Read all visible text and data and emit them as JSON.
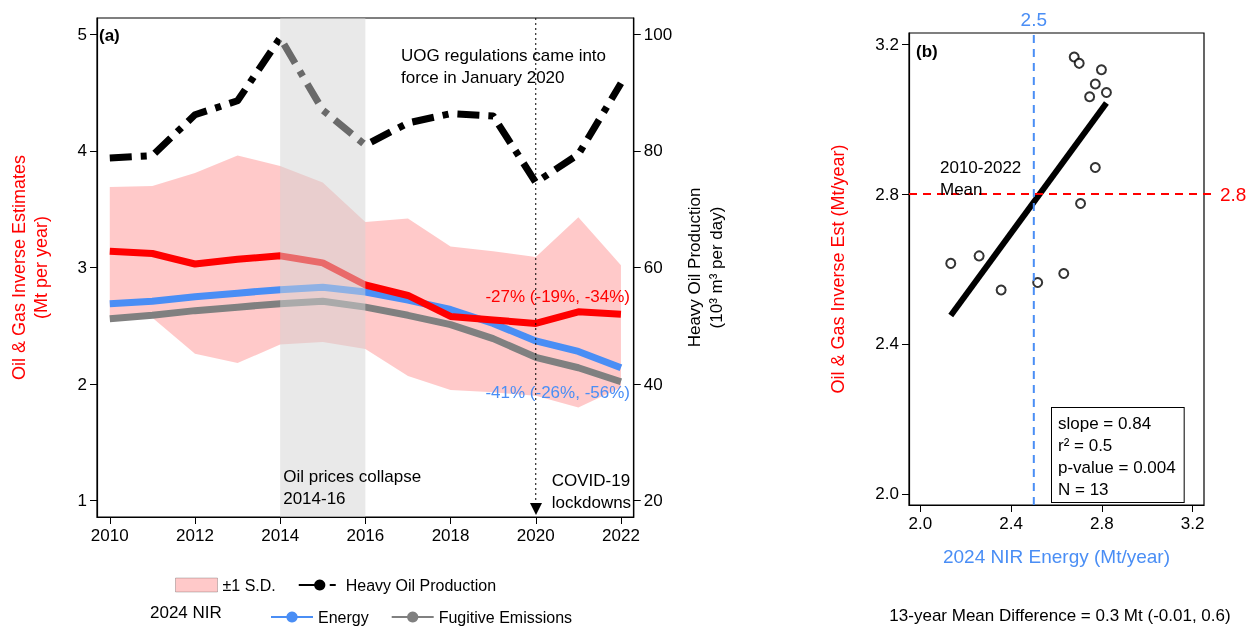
{
  "chart_data": [
    {
      "type": "line",
      "x": [
        2010,
        2011,
        2012,
        2013,
        2014,
        2015,
        2016,
        2017,
        2018,
        2019,
        2020,
        2021,
        2022
      ],
      "ylabel": "Oil & Gas Inverse Estimates\n(Mt per year)",
      "y2label": "Heavy Oil Production\n(10³ m³ per day)",
      "legend_title": "2024 NIR",
      "xlim": [
        2009.7,
        2022.3
      ],
      "xticks": [
        2010,
        2012,
        2014,
        2016,
        2018,
        2020,
        2022
      ],
      "ylim": [
        0.86,
        5.14
      ],
      "yticks": [
        1,
        2,
        3,
        4,
        5
      ],
      "y2lim": [
        17.2,
        102.8
      ],
      "y2ticks": [
        20,
        40,
        60,
        80,
        100
      ],
      "marker": "none",
      "legend": "bottom",
      "series": [
        {
          "color": "#ff0000",
          "name": "±1 S.D.",
          "values": [
            3.14,
            3.12,
            3.03,
            3.07,
            3.1,
            3.04,
            2.85,
            2.76,
            2.58,
            2.55,
            2.52,
            2.62,
            2.6
          ],
          "lower": [
            2.58,
            2.57,
            2.26,
            2.18,
            2.34,
            2.36,
            2.3,
            2.07,
            1.95,
            1.93,
            1.9,
            1.8,
            1.97
          ],
          "upper": [
            3.69,
            3.7,
            3.81,
            3.96,
            3.87,
            3.73,
            3.39,
            3.42,
            3.18,
            3.14,
            3.09,
            3.43,
            3.02
          ]
        },
        {
          "color": "#4a8ef5",
          "name": "Energy",
          "values": [
            2.69,
            2.71,
            2.75,
            2.78,
            2.81,
            2.83,
            2.79,
            2.72,
            2.64,
            2.52,
            2.37,
            2.28,
            2.14
          ]
        },
        {
          "color": "#808080",
          "name": "Fugitive Emissions",
          "values": [
            2.56,
            2.59,
            2.63,
            2.66,
            2.69,
            2.71,
            2.66,
            2.59,
            2.51,
            2.39,
            2.23,
            2.14,
            2.02
          ]
        },
        {
          "color": "#000000",
          "name": "Heavy Oil Production",
          "axis": "y2",
          "line_style": "dashdot",
          "values": [
            78.8,
            79.2,
            86.2,
            88.6,
            99.4,
            87,
            81,
            84.8,
            86.4,
            86,
            74.6,
            79.4,
            91.6
          ]
        }
      ],
      "bands": [
        {
          "axis": "x",
          "from": 2014,
          "to": 2016,
          "label": "Oil prices collapse 2014-16",
          "color": "#d3d3d3"
        }
      ],
      "ref_lines": [
        {
          "axis": "x",
          "value": 2020,
          "label": "COVID-19 lockdowns",
          "color": "#000000",
          "line_style": "dotted"
        }
      ],
      "annotations": [
        "(a)",
        "UOG regulations came into force in January 2020",
        "-27% (-19%, -34%)",
        "-41% (-26%, -56%)"
      ]
    },
    {
      "type": "scatter",
      "xlabel": "2024 NIR Energy (Mt/year)",
      "ylabel": "Oil & Gas Inverse Est (Mt/year)",
      "xlim": [
        1.95,
        3.25
      ],
      "xticks": [
        {
          "value": 2,
          "label": "2.0"
        },
        2.4,
        2.8,
        3.2
      ],
      "ylim": [
        1.97,
        3.23
      ],
      "yticks": [
        {
          "value": 2,
          "label": "2.0"
        },
        2.4,
        2.8,
        3.2
      ],
      "marker": "circle",
      "series": [
        {
          "color": "#000000",
          "x": [
            2.678,
            2.7,
            2.798,
            2.771,
            2.746,
            2.82,
            2.771,
            2.706,
            2.134,
            2.259,
            2.356,
            2.517,
            2.632
          ],
          "values": [
            3.166,
            3.149,
            3.132,
            3.094,
            3.06,
            3.071,
            2.871,
            2.775,
            2.615,
            2.635,
            2.544,
            2.564,
            2.588
          ]
        },
        {
          "type": "line",
          "marker": "none",
          "color": "#000000",
          "x": [
            2.134,
            2.82
          ],
          "values": [
            2.476,
            3.043
          ]
        }
      ],
      "ref_lines": [
        {
          "axis": "x",
          "value": 2.5,
          "label": "2.5",
          "color": "#4a8ef5",
          "line_style": "dashed"
        },
        {
          "axis": "y",
          "value": 2.8,
          "label": "2.8",
          "color": "#ff0000",
          "line_style": "dashed"
        }
      ],
      "annotations": [
        "(b)",
        "2010-2022 Mean",
        "slope = 0.84\nr² = 0.5\np-value = 0.004\nN = 13",
        "13-year Mean Difference = 0.3 Mt (-0.01, 0.6)"
      ]
    }
  ]
}
